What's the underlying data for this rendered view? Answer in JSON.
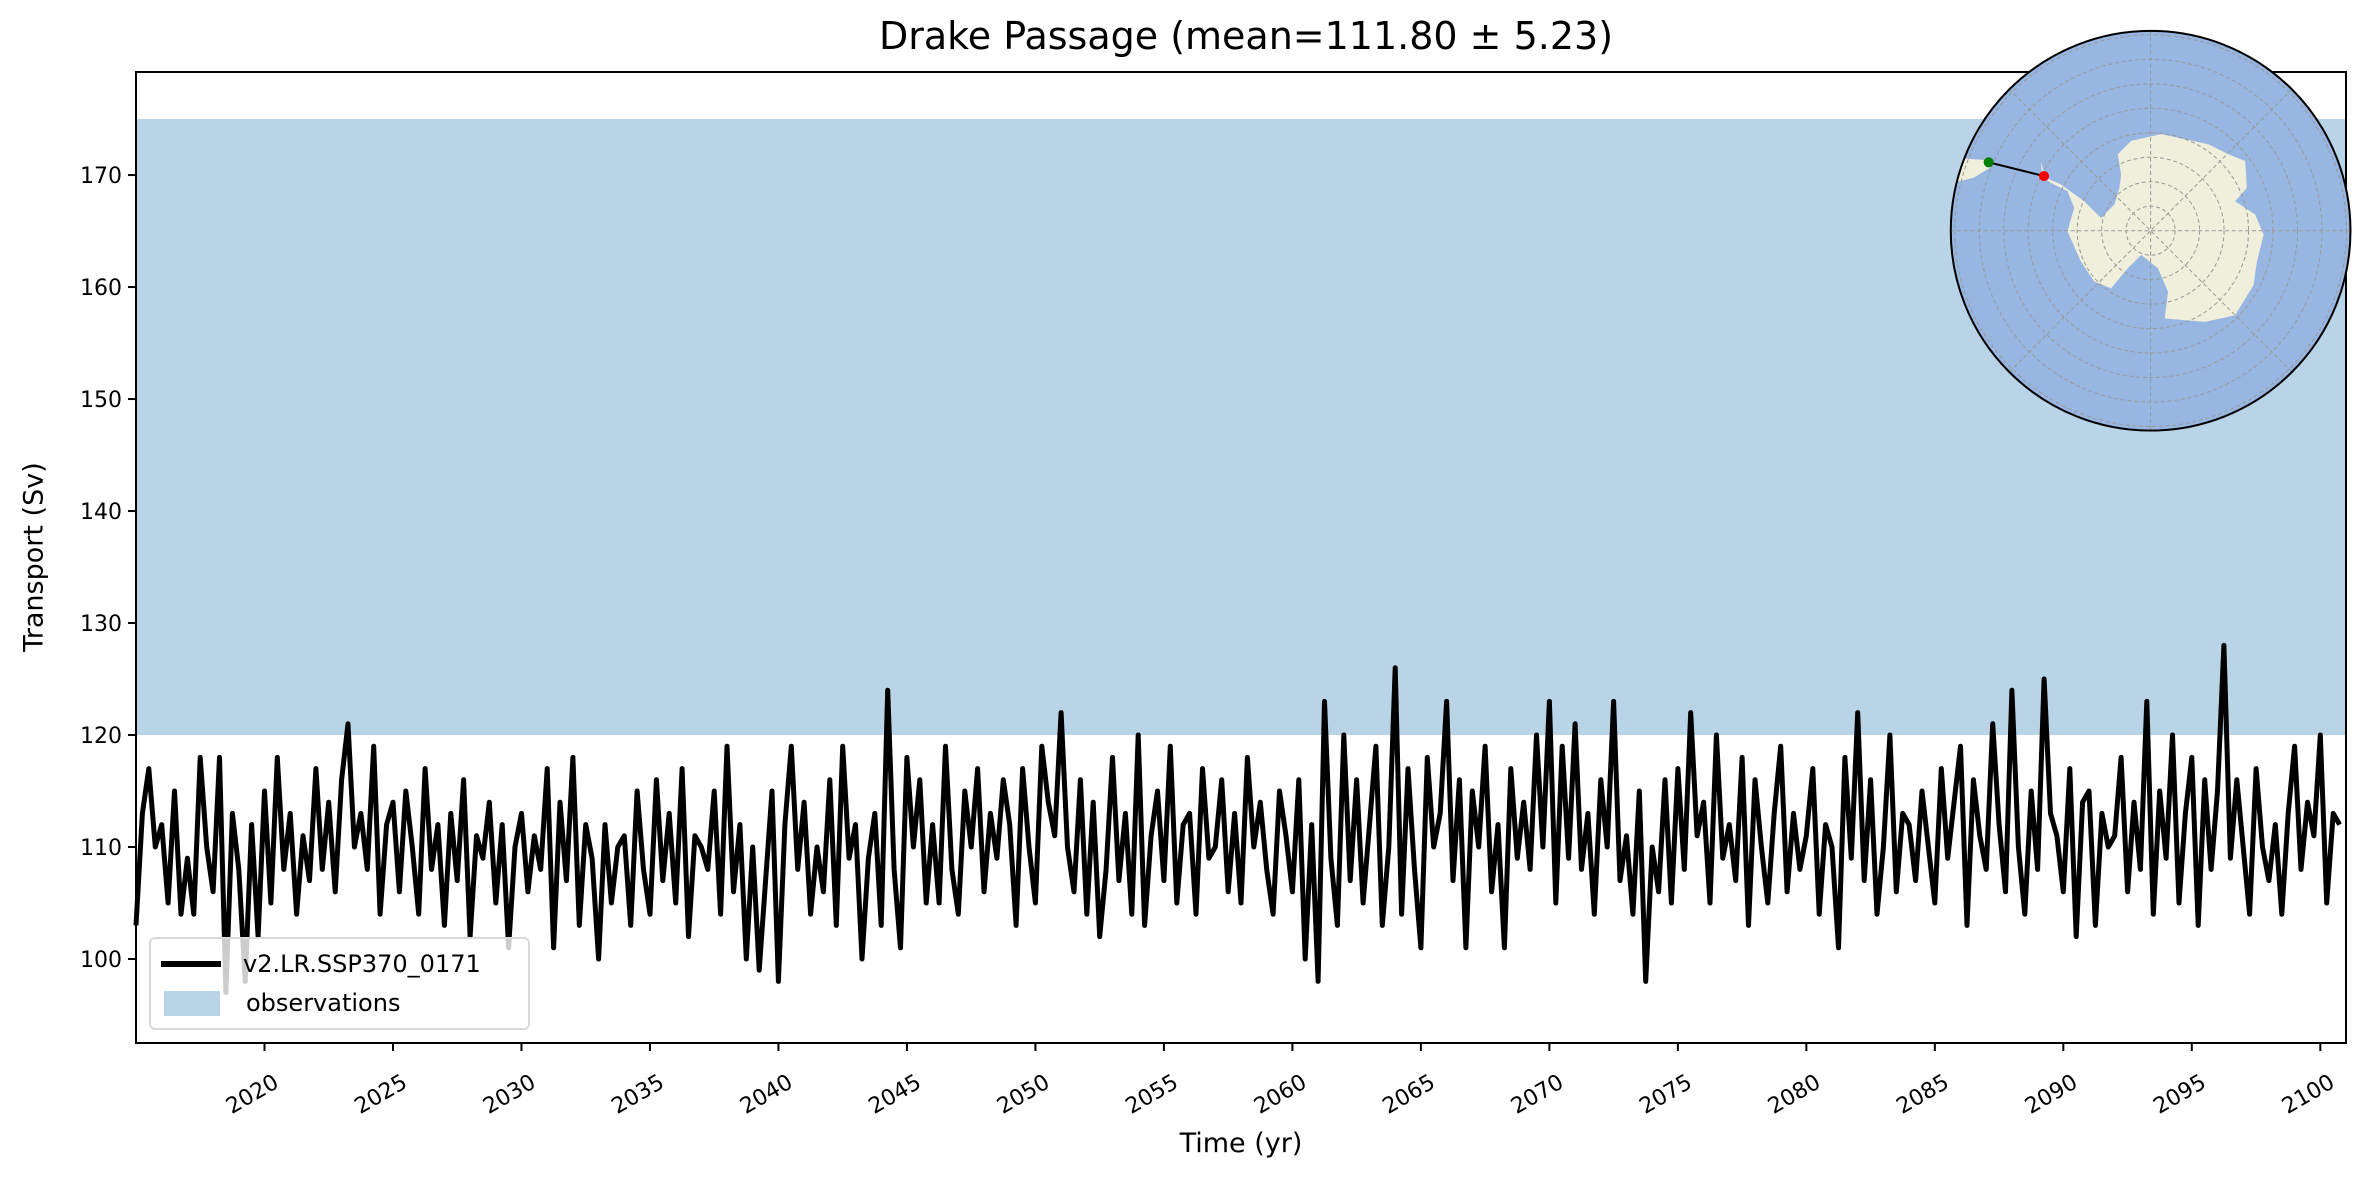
{
  "chart_data": {
    "type": "line",
    "title": "Drake Passage (mean=111.80 ± 5.23)",
    "xlabel": "Time (yr)",
    "ylabel": "Transport (Sv)",
    "xlim": [
      2015,
      2101
    ],
    "ylim": [
      92.5,
      179.2
    ],
    "xticks": [
      2020,
      2025,
      2030,
      2035,
      2040,
      2045,
      2050,
      2055,
      2060,
      2065,
      2070,
      2075,
      2080,
      2085,
      2090,
      2095,
      2100
    ],
    "yticks": [
      100,
      110,
      120,
      130,
      140,
      150,
      160,
      170
    ],
    "grid": false,
    "legend_position": "lower-left",
    "observations": {
      "name": "observations",
      "range": [
        120,
        175
      ],
      "color": "#b9d4e7"
    },
    "series": [
      {
        "name": "v2.LR.SSP370_0171",
        "color": "#000000",
        "x_start": 2015,
        "x_step": 0.25,
        "values": [
          103,
          113,
          117,
          110,
          112,
          105,
          115,
          104,
          109,
          104,
          118,
          110,
          106,
          118,
          97,
          113,
          108,
          98,
          112,
          102,
          115,
          105,
          118,
          108,
          113,
          104,
          111,
          107,
          117,
          108,
          114,
          106,
          116,
          121,
          110,
          113,
          108,
          119,
          104,
          112,
          114,
          106,
          115,
          110,
          104,
          117,
          108,
          112,
          103,
          113,
          107,
          116,
          102,
          111,
          109,
          114,
          105,
          112,
          101,
          110,
          113,
          106,
          111,
          108,
          117,
          101,
          114,
          107,
          118,
          103,
          112,
          109,
          100,
          112,
          105,
          110,
          111,
          103,
          115,
          108,
          104,
          116,
          107,
          113,
          105,
          117,
          102,
          111,
          110,
          108,
          115,
          104,
          119,
          106,
          112,
          100,
          110,
          99,
          107,
          115,
          98,
          112,
          119,
          108,
          114,
          104,
          110,
          106,
          116,
          103,
          119,
          109,
          112,
          100,
          109,
          113,
          103,
          124,
          108,
          101,
          118,
          110,
          116,
          105,
          112,
          105,
          119,
          108,
          104,
          115,
          110,
          117,
          106,
          113,
          109,
          116,
          112,
          103,
          117,
          110,
          105,
          119,
          114,
          111,
          122,
          110,
          106,
          116,
          104,
          114,
          102,
          108,
          118,
          107,
          113,
          104,
          120,
          103,
          111,
          115,
          107,
          119,
          105,
          112,
          113,
          104,
          117,
          109,
          110,
          116,
          106,
          113,
          105,
          118,
          110,
          114,
          108,
          104,
          115,
          111,
          106,
          116,
          100,
          112,
          98,
          123,
          109,
          103,
          120,
          107,
          116,
          105,
          112,
          119,
          103,
          110,
          126,
          104,
          117,
          108,
          101,
          118,
          110,
          113,
          123,
          107,
          116,
          101,
          115,
          110,
          119,
          106,
          112,
          101,
          117,
          109,
          114,
          108,
          120,
          110,
          123,
          105,
          119,
          109,
          121,
          108,
          113,
          104,
          116,
          110,
          123,
          107,
          111,
          104,
          115,
          98,
          110,
          106,
          116,
          105,
          117,
          108,
          122,
          111,
          114,
          105,
          120,
          109,
          112,
          107,
          118,
          103,
          116,
          110,
          105,
          113,
          119,
          106,
          113,
          108,
          111,
          117,
          104,
          112,
          110,
          101,
          118,
          109,
          122,
          107,
          116,
          104,
          110,
          120,
          106,
          113,
          112,
          107,
          115,
          110,
          105,
          117,
          109,
          114,
          119,
          103,
          116,
          111,
          108,
          121,
          112,
          106,
          124,
          110,
          104,
          115,
          108,
          125,
          113,
          111,
          106,
          117,
          102,
          114,
          115,
          103,
          113,
          110,
          111,
          118,
          106,
          114,
          108,
          123,
          104,
          115,
          109,
          120,
          105,
          113,
          118,
          103,
          116,
          108,
          115,
          128,
          109,
          116,
          110,
          104,
          117,
          110,
          107,
          112,
          104,
          113,
          119,
          108,
          114,
          111,
          120,
          105,
          113,
          112
        ]
      }
    ]
  },
  "inset_map": {
    "ocean_color": "#97b6e1",
    "land_color": "#efefdb",
    "start_marker_color": "#008000",
    "end_marker_color": "#ff0000"
  }
}
